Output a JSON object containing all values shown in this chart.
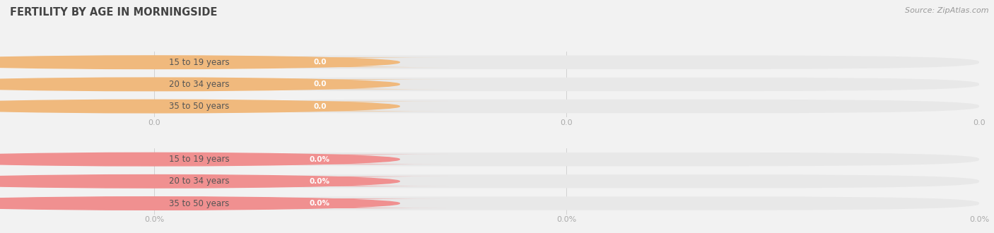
{
  "title": "FERTILITY BY AGE IN MORNINGSIDE",
  "source": "Source: ZipAtlas.com",
  "background_color": "#f2f2f2",
  "top_section": {
    "categories": [
      "15 to 19 years",
      "20 to 34 years",
      "35 to 50 years"
    ],
    "values": [
      0.0,
      0.0,
      0.0
    ],
    "bar_color": "#f0b97d",
    "value_bg_color": "#f0b97d",
    "value_text_color": "#ffffff",
    "x_tick_labels": [
      "0.0",
      "0.0",
      "0.0"
    ]
  },
  "bottom_section": {
    "categories": [
      "15 to 19 years",
      "20 to 34 years",
      "35 to 50 years"
    ],
    "values": [
      0.0,
      0.0,
      0.0
    ],
    "bar_color": "#f09090",
    "value_bg_color": "#f09090",
    "value_text_color": "#ffffff",
    "x_tick_labels": [
      "0.0%",
      "0.0%",
      "0.0%"
    ]
  },
  "fig_width": 14.06,
  "fig_height": 3.3,
  "dpi": 100,
  "bar_bg_color": "#e8e8e8",
  "bar_white_color": "#f8f8f8",
  "label_area_color": "#ffffff",
  "title_color": "#444444",
  "source_color": "#999999",
  "tick_color": "#aaaaaa",
  "title_fontsize": 10.5,
  "label_fontsize": 8.5,
  "value_fontsize": 7.5,
  "tick_fontsize": 8.0
}
